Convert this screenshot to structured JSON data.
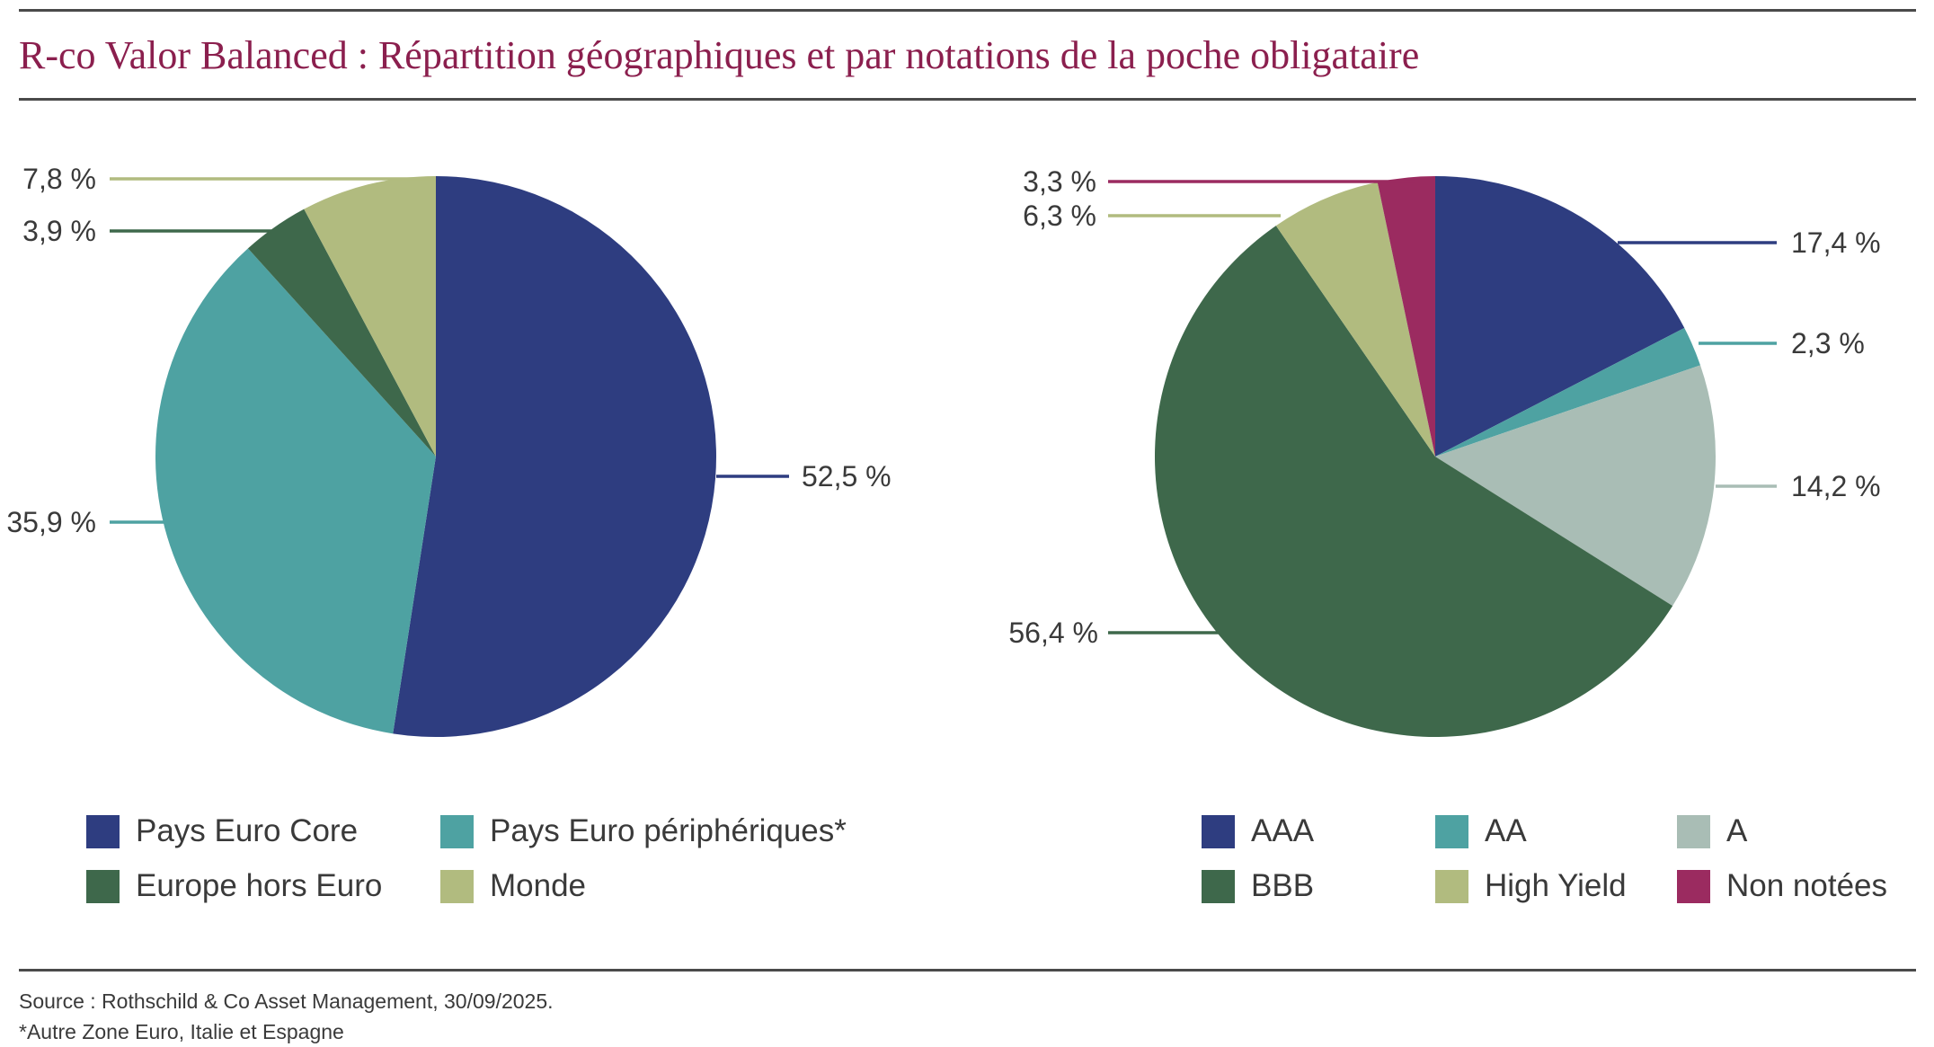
{
  "title": "R-co Valor Balanced : Répartition géographiques et par notations de la poche obligataire",
  "chart_data": [
    {
      "type": "pie",
      "slices": [
        {
          "label": "Pays Euro Core",
          "value": 52.5,
          "value_label": "52,5 %",
          "color": "#2e3d80"
        },
        {
          "label": "Pays Euro périphériques*",
          "value": 35.9,
          "value_label": "35,9 %",
          "color": "#4ea2a2"
        },
        {
          "label": "Europe hors Euro",
          "value": 3.9,
          "value_label": "3,9 %",
          "color": "#3e684b"
        },
        {
          "label": "Monde",
          "value": 7.8,
          "value_label": "7,8 %",
          "color": "#b1bb7f"
        }
      ]
    },
    {
      "type": "pie",
      "slices": [
        {
          "label": "AAA",
          "value": 17.4,
          "value_label": "17,4 %",
          "color": "#2e3d80"
        },
        {
          "label": "AA",
          "value": 2.3,
          "value_label": "2,3 %",
          "color": "#4ea2a2"
        },
        {
          "label": "A",
          "value": 14.2,
          "value_label": "14,2 %",
          "color": "#a9bdb5"
        },
        {
          "label": "BBB",
          "value": 56.4,
          "value_label": "56,4 %",
          "color": "#3e684b"
        },
        {
          "label": "High Yield",
          "value": 6.3,
          "value_label": "6,3 %",
          "color": "#b1bb7f"
        },
        {
          "label": "Non notées",
          "value": 3.3,
          "value_label": "3,3 %",
          "color": "#9b2b60"
        }
      ]
    }
  ],
  "legend_left": [
    {
      "label": "Pays Euro Core",
      "color": "#2e3d80"
    },
    {
      "label": "Pays Euro périphériques*",
      "color": "#4ea2a2"
    },
    {
      "label": "Europe hors Euro",
      "color": "#3e684b"
    },
    {
      "label": "Monde",
      "color": "#b1bb7f"
    }
  ],
  "legend_right": [
    {
      "label": "AAA",
      "color": "#2e3d80"
    },
    {
      "label": "AA",
      "color": "#4ea2a2"
    },
    {
      "label": "A",
      "color": "#a9bdb5"
    },
    {
      "label": "BBB",
      "color": "#3e684b"
    },
    {
      "label": "High Yield",
      "color": "#b1bb7f"
    },
    {
      "label": "Non notées",
      "color": "#9b2b60"
    }
  ],
  "footer": {
    "source": "Source : Rothschild & Co Asset Management, 30/09/2025.",
    "note": "*Autre Zone Euro, Italie et Espagne"
  }
}
